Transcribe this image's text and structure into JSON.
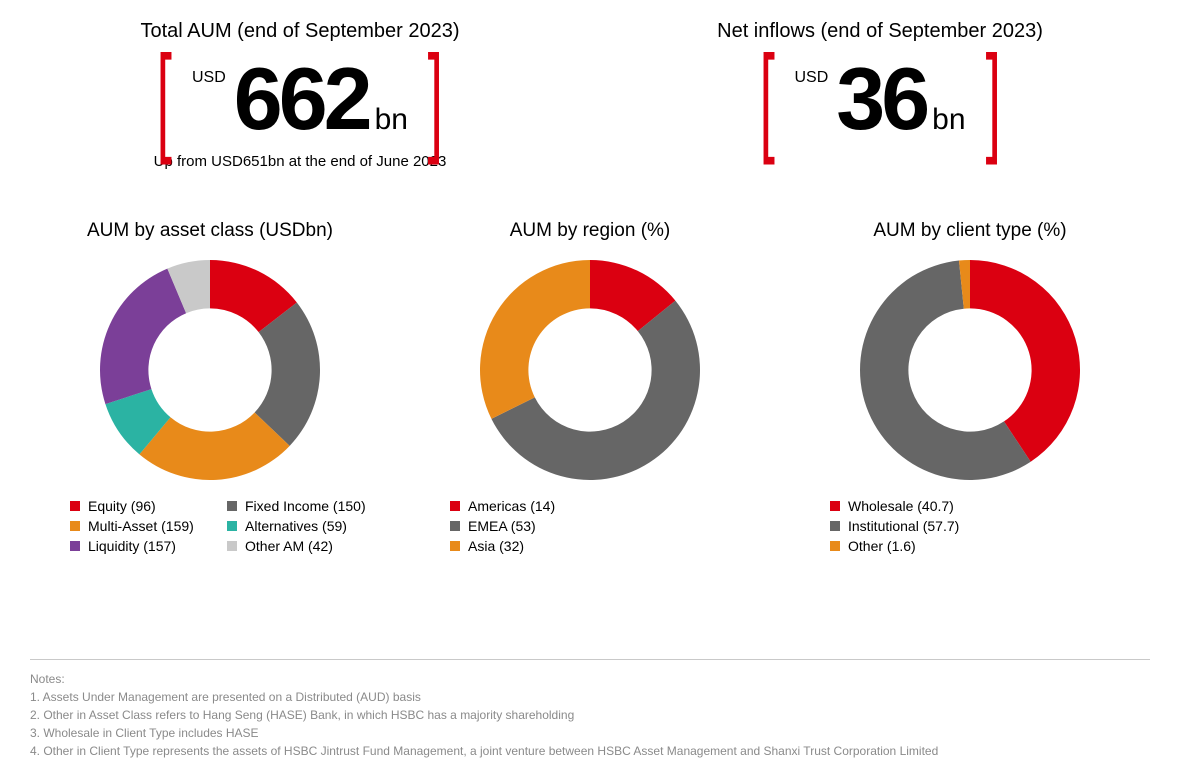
{
  "colors": {
    "red": "#db0011",
    "grey": "#666666",
    "orange": "#e88a1a",
    "teal": "#2bb3a3",
    "purple": "#7b3f98",
    "lightgrey": "#c9c9c9",
    "text": "#000000",
    "notes": "#8a8a8a",
    "bracket": "#db0011"
  },
  "metrics": [
    {
      "title": "Total AUM (end of September 2023)",
      "currency": "USD",
      "value": "662",
      "unit": "bn",
      "subtitle": "Up from USD651bn at the end of June 2023"
    },
    {
      "title": "Net inflows (end of September 2023)",
      "currency": "USD",
      "value": "36",
      "unit": "bn",
      "subtitle": ""
    }
  ],
  "charts": [
    {
      "title": "AUM by asset class (USDbn)",
      "type": "donut",
      "inner_ratio": 0.56,
      "legend_cols": 2,
      "slices": [
        {
          "label": "Equity",
          "value": 96,
          "color": "#db0011"
        },
        {
          "label": "Fixed Income",
          "value": 150,
          "color": "#666666"
        },
        {
          "label": "Multi-Asset",
          "value": 159,
          "color": "#e88a1a"
        },
        {
          "label": "Alternatives",
          "value": 59,
          "color": "#2bb3a3"
        },
        {
          "label": "Liquidity",
          "value": 157,
          "color": "#7b3f98"
        },
        {
          "label": "Other AM",
          "value": 42,
          "color": "#c9c9c9"
        }
      ]
    },
    {
      "title": "AUM by region (%)",
      "type": "donut",
      "inner_ratio": 0.56,
      "legend_cols": 1,
      "slices": [
        {
          "label": "Americas",
          "value": 14,
          "color": "#db0011"
        },
        {
          "label": "EMEA",
          "value": 53,
          "color": "#666666"
        },
        {
          "label": "Asia",
          "value": 32,
          "color": "#e88a1a"
        }
      ]
    },
    {
      "title": "AUM by client type (%)",
      "type": "donut",
      "inner_ratio": 0.56,
      "legend_cols": 1,
      "slices": [
        {
          "label": "Wholesale",
          "value": 40.7,
          "color": "#db0011"
        },
        {
          "label": "Institutional",
          "value": 57.7,
          "color": "#666666"
        },
        {
          "label": "Other",
          "value": 1.6,
          "color": "#e88a1a"
        }
      ]
    }
  ],
  "notes": {
    "heading": "Notes:",
    "items": [
      "Assets Under Management are presented on a Distributed (AUD) basis",
      "Other in Asset Class refers to Hang Seng (HASE) Bank, in which HSBC has a majority shareholding",
      "Wholesale in Client Type includes HASE",
      "Other in Client Type represents the assets of HSBC Jintrust Fund Management, a joint venture between HSBC Asset Management and Shanxi Trust Corporation Limited"
    ]
  }
}
